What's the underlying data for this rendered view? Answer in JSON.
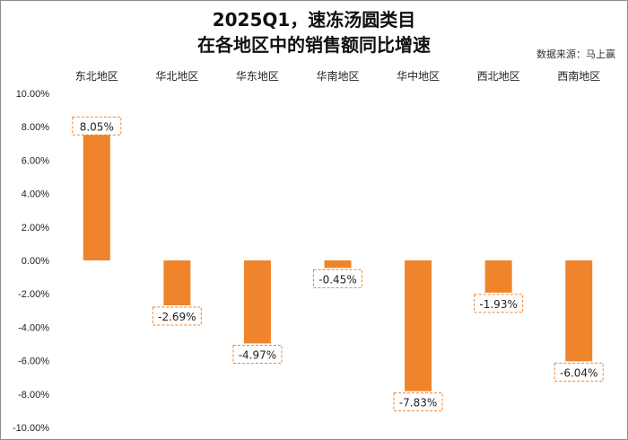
{
  "chart_data": {
    "type": "bar",
    "title": "2025Q1，速冻汤圆类目",
    "subtitle": "在各地区中的销售额同比增速",
    "source": "数据来源：马上赢",
    "categories": [
      "东北地区",
      "华北地区",
      "华东地区",
      "华南地区",
      "华中地区",
      "西北地区",
      "西南地区"
    ],
    "values": [
      8.05,
      -2.69,
      -4.97,
      -0.45,
      -7.83,
      -1.93,
      -6.04
    ],
    "data_labels": [
      "8.05%",
      "-2.69%",
      "-4.97%",
      "-0.45%",
      "-7.83%",
      "-1.93%",
      "-6.04%"
    ],
    "y_ticks": [
      "10.00%",
      "8.00%",
      "6.00%",
      "4.00%",
      "2.00%",
      "0.00%",
      "-2.00%",
      "-4.00%",
      "-6.00%",
      "-8.00%",
      "-10.00%"
    ],
    "ylim": [
      -10,
      10
    ],
    "xlabel": "",
    "ylabel": "",
    "grid": false,
    "category_axis_position": "top",
    "bar_color": "#f0842c",
    "label_border_color": "#f0842c"
  }
}
